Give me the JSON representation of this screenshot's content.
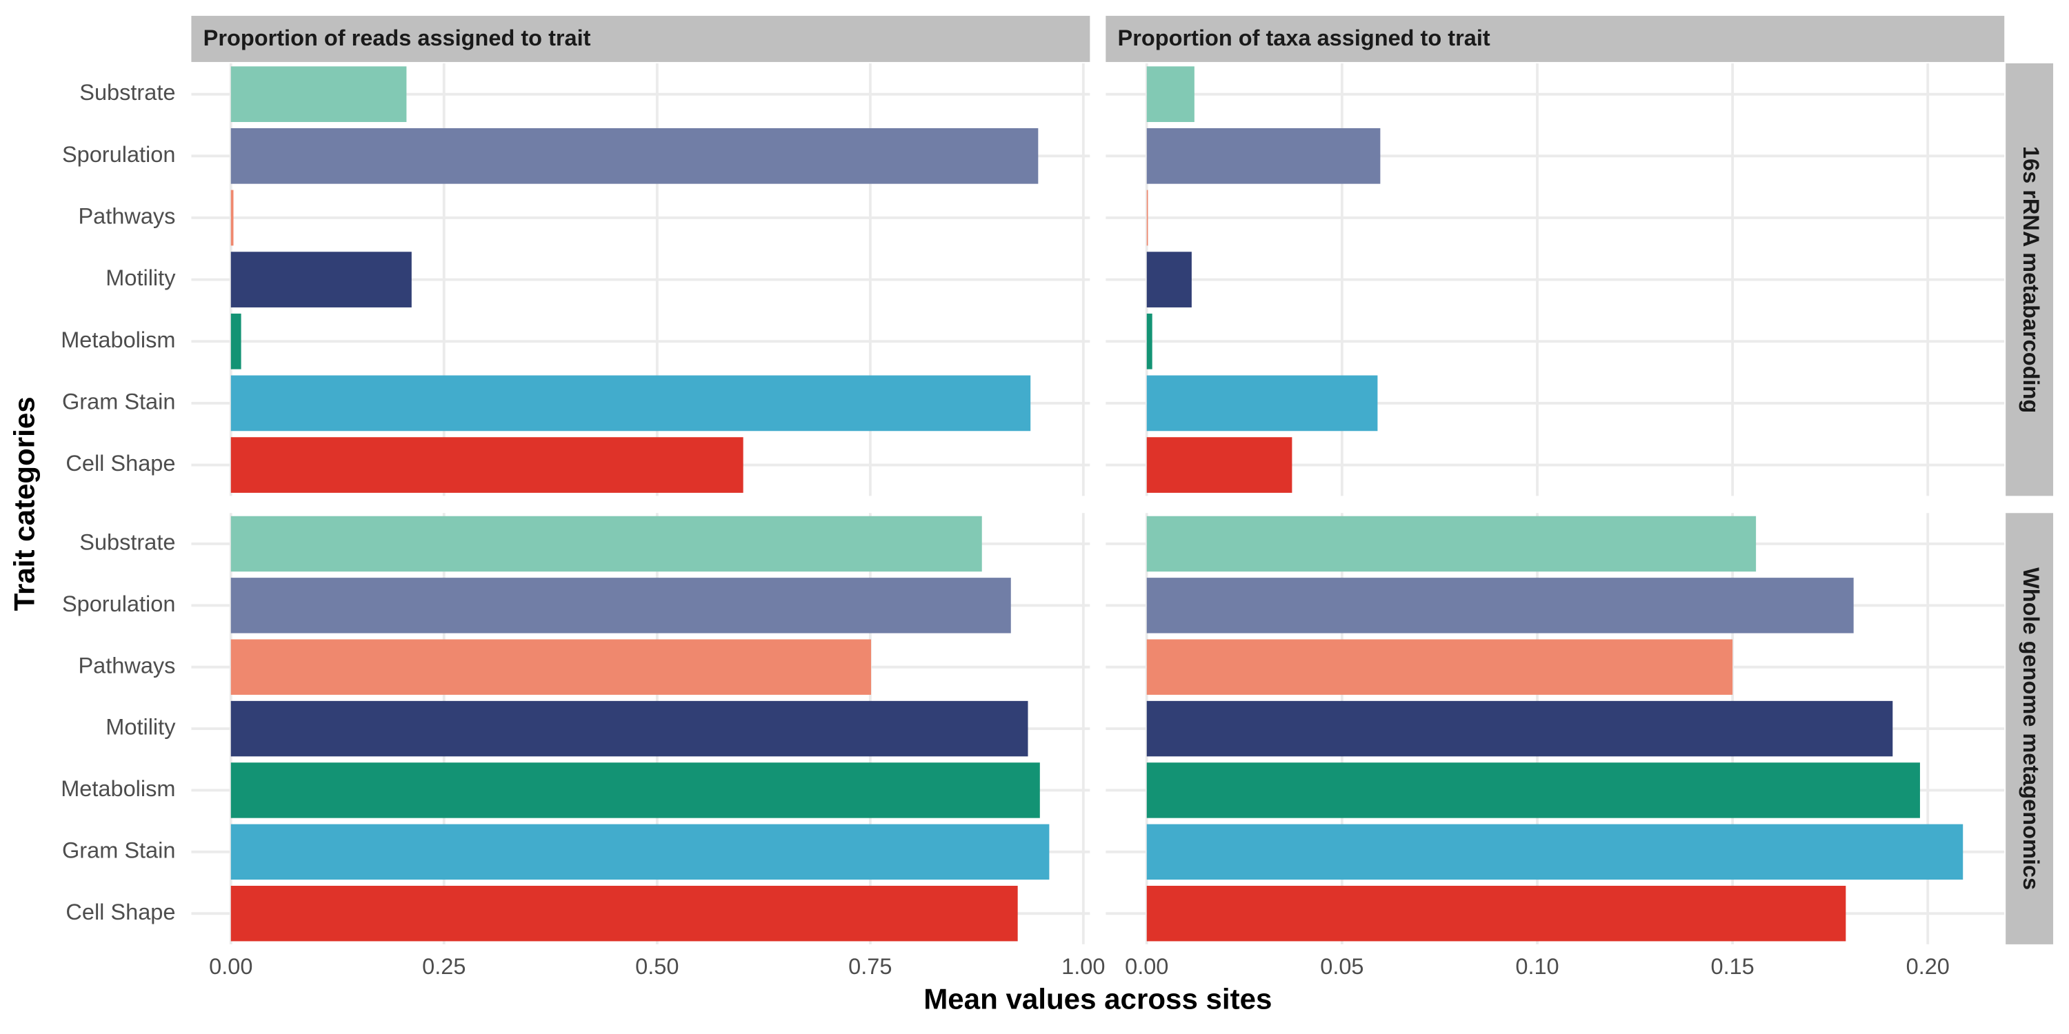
{
  "chart_data": {
    "type": "bar",
    "orientation": "horizontal",
    "x_label": "Mean values across sites",
    "y_label": "Trait categories",
    "categories": [
      "Substrate",
      "Sporulation",
      "Pathways",
      "Motility",
      "Metabolism",
      "Gram Stain",
      "Cell Shape"
    ],
    "colors": [
      "#82c9b4",
      "#717ea6",
      "#ef886e",
      "#313f75",
      "#139374",
      "#42accc",
      "#df3329"
    ],
    "grid": true,
    "columns": [
      {
        "label": "Proportion of reads assigned to trait",
        "xlim": [
          -0.0464,
          1.0077
        ],
        "xticks": [
          {
            "value": 0,
            "label": "0.00"
          },
          {
            "value": 0.25,
            "label": "0.25"
          },
          {
            "value": 0.5,
            "label": "0.50"
          },
          {
            "value": 0.75,
            "label": "0.75"
          },
          {
            "value": 1,
            "label": "1.00"
          }
        ]
      },
      {
        "label": "Proportion of taxa assigned to trait",
        "xlim": [
          -0.0105,
          0.2196
        ],
        "xticks": [
          {
            "value": 0,
            "label": "0.00"
          },
          {
            "value": 0.05,
            "label": "0.05"
          },
          {
            "value": 0.1,
            "label": "0.10"
          },
          {
            "value": 0.15,
            "label": "0.15"
          },
          {
            "value": 0.2,
            "label": "0.20"
          }
        ]
      }
    ],
    "rows": [
      {
        "label": "16s rRNA metabarcoding",
        "panels": [
          {
            "values": [
              0.206,
              0.947,
              0.003,
              0.212,
              0.012,
              0.938,
              0.601
            ]
          },
          {
            "values": [
              0.0122,
              0.0598,
              0.0003,
              0.0115,
              0.0014,
              0.0591,
              0.0372
            ]
          }
        ]
      },
      {
        "label": "Whole genome metagenomics",
        "panels": [
          {
            "values": [
              0.881,
              0.915,
              0.751,
              0.935,
              0.949,
              0.96,
              0.923
            ]
          },
          {
            "values": [
              0.156,
              0.181,
              0.15,
              0.191,
              0.198,
              0.209,
              0.179
            ]
          }
        ]
      }
    ]
  }
}
